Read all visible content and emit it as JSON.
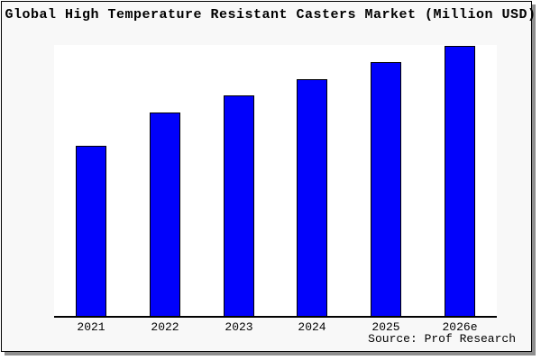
{
  "page": {
    "background_color": "#ffffff",
    "frame_background_color": "#f8f8f8",
    "frame_border_color": "#000000",
    "frame_shadow_color": "#8f8f8f"
  },
  "chart_data": {
    "type": "bar",
    "title": "Global High Temperature Resistant Casters Market (Million USD)",
    "categories": [
      "2021",
      "2022",
      "2023",
      "2024",
      "2025",
      "2026e"
    ],
    "values": [
      63,
      75.3,
      81.7,
      87.7,
      94,
      100
    ],
    "value_units": "relative index (y-axis unlabeled in chart; 2026e = 100)",
    "xlabel": "",
    "ylabel": "",
    "ylim": [
      0,
      100.4
    ],
    "grid": false,
    "legend": false,
    "y_axis_labels_visible": false,
    "bar_color": "#0101fb",
    "bar_border_color": "#000000",
    "axis_line_color": "#000000",
    "plot_background_color": "#ffffff",
    "source": "Source: Prof Research"
  }
}
